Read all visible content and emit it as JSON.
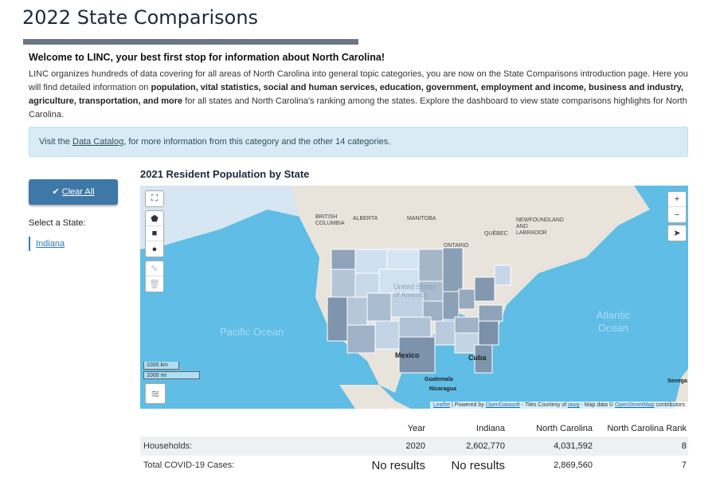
{
  "page": {
    "title": "2022 State Comparisons",
    "welcome": "Welcome to LINC, your best first stop for information about North Carolina!",
    "intro": {
      "p1": "LINC organizes hundreds of data covering for all areas of North Carolina into general topic categories, you are now on the State Comparisons introduction page. Here you will find detailed information on ",
      "bold": "population, vital statistics, social and human services, education, government, employment and income, business and industry, agriculture, transportation, and more",
      "p2": " for all states and North Carolina's ranking among the states. Explore the dashboard to view state comparisons highlights for North Carolina."
    },
    "notice": {
      "pre": "Visit the ",
      "link": "Data Catalog",
      "post": ", for more information from this category and the other 14 categories."
    }
  },
  "sidebar": {
    "clear_all": "Clear All",
    "select_label": "Select a State:",
    "selected_state": "Indiana"
  },
  "map": {
    "title": "2021 Resident Population by State",
    "labels": {
      "bc": "BRITISH COLUMBIA",
      "alberta": "ALBERTA",
      "manitoba": "MANITOBA",
      "ontario": "ONTARIO",
      "quebec": "QUÉBEC",
      "nl": "NEWFOUNDLAND AND LABRADOR",
      "us": "United States of America",
      "mexico": "Mexico",
      "cuba": "Cuba",
      "guatemala": "Guatemala",
      "nicaragua": "Nicaragua",
      "senegal": "Senega"
    },
    "pacific": "Pacific Ocean",
    "atlantic": "Atlantic Ocean",
    "scale_km": "1000 km",
    "scale_mi": "1000 mi",
    "zoom_in": "+",
    "zoom_out": "−",
    "attribution": {
      "leaflet": "Leaflet",
      "powered": " | Powered by ",
      "esri": "OpenDatasoft",
      "tiles": " - Tiles Courtesy of ",
      "jawg": "jawg",
      "mapdata": " - Map data © ",
      "osm": "OpenStreetMap",
      "contrib": " contributors"
    }
  },
  "table": {
    "headers": [
      "",
      "Year",
      "Indiana",
      "North Carolina",
      "North Carolina Rank"
    ],
    "rows": [
      {
        "label": "Households:",
        "year": "2020",
        "indiana": "2,602,770",
        "nc": "4,031,592",
        "rank": "8"
      },
      {
        "label": "Total COVID-19 Cases:",
        "year": "No results",
        "indiana": "No results",
        "nc": "2,869,560",
        "rank": "7"
      }
    ]
  }
}
